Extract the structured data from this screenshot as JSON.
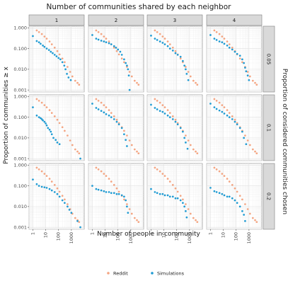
{
  "chart_data": {
    "type": "scatter",
    "title": "Number of communities shared by each neighbor",
    "xlabel": "Number of people in community",
    "ylabel": "Proportion of communities ≥ x",
    "right_label": "Proportion of considered communities chosen",
    "x_scale": "log",
    "y_scale": "log",
    "xlim": [
      0.5,
      10000
    ],
    "ylim": [
      0.0008,
      1.2
    ],
    "x_ticks": [
      "1",
      "10",
      "100",
      "1000"
    ],
    "y_ticks": [
      "1.000",
      "0.100",
      "0.010",
      "0.001"
    ],
    "grid": true,
    "legend_position": "bottom",
    "column_facets": [
      "1",
      "2",
      "3",
      "4"
    ],
    "row_facets": [
      "0.05",
      "0.1",
      "0.2"
    ],
    "colors": {
      "Reddit": "#f4a582",
      "Simulations": "#1f9bd3"
    },
    "series": [
      {
        "name": "Reddit",
        "x": [
          2,
          3,
          5,
          8,
          12,
          20,
          30,
          50,
          80,
          120,
          200,
          300,
          500,
          800,
          1200,
          2000,
          3000,
          4000
        ],
        "y": [
          0.75,
          0.62,
          0.5,
          0.38,
          0.3,
          0.22,
          0.16,
          0.11,
          0.075,
          0.052,
          0.033,
          0.022,
          0.013,
          0.0075,
          0.0045,
          0.0028,
          0.0022,
          0.0018
        ]
      }
    ],
    "panels": [
      {
        "col": "1",
        "row": "0.05",
        "series": [
          {
            "name": "Simulations",
            "x": [
              1,
              2,
              3,
              4,
              6,
              8,
              12,
              18,
              25,
              35,
              50,
              70,
              100,
              140,
              200,
              280,
              350,
              450,
              600,
              900
            ],
            "y": [
              0.4,
              0.23,
              0.2,
              0.17,
              0.14,
              0.12,
              0.1,
              0.085,
              0.07,
              0.06,
              0.05,
              0.042,
              0.035,
              0.03,
              0.022,
              0.015,
              0.01,
              0.006,
              0.004,
              0.003
            ]
          }
        ]
      },
      {
        "col": "2",
        "row": "0.05",
        "series": [
          {
            "name": "Simulations",
            "x": [
              1,
              2,
              3,
              5,
              8,
              12,
              20,
              30,
              50,
              70,
              100,
              150,
              200,
              300,
              400,
              500,
              600,
              700,
              800
            ],
            "y": [
              0.45,
              0.3,
              0.27,
              0.24,
              0.22,
              0.2,
              0.18,
              0.16,
              0.13,
              0.11,
              0.09,
              0.07,
              0.05,
              0.03,
              0.02,
              0.015,
              0.01,
              0.005,
              0.001
            ]
          }
        ]
      },
      {
        "col": "3",
        "row": "0.05",
        "series": [
          {
            "name": "Simulations",
            "x": [
              1,
              2,
              3,
              5,
              8,
              12,
              20,
              30,
              50,
              80,
              120,
              200,
              300,
              400,
              500,
              600,
              800
            ],
            "y": [
              0.42,
              0.3,
              0.26,
              0.22,
              0.19,
              0.16,
              0.13,
              0.1,
              0.08,
              0.06,
              0.05,
              0.04,
              0.025,
              0.015,
              0.01,
              0.006,
              0.003
            ]
          }
        ]
      },
      {
        "col": "4",
        "row": "0.05",
        "series": [
          {
            "name": "Simulations",
            "x": [
              1,
              2,
              3,
              5,
              8,
              12,
              20,
              30,
              50,
              80,
              120,
              200,
              300,
              400,
              500,
              600,
              800,
              1000
            ],
            "y": [
              0.45,
              0.3,
              0.26,
              0.22,
              0.2,
              0.17,
              0.14,
              0.11,
              0.09,
              0.07,
              0.055,
              0.045,
              0.03,
              0.02,
              0.012,
              0.008,
              0.005,
              0.003
            ]
          }
        ]
      },
      {
        "col": "1",
        "row": "0.1",
        "series": [
          {
            "name": "Simulations",
            "x": [
              1,
              2,
              3,
              4,
              5,
              6,
              8,
              10,
              12,
              15,
              20,
              25,
              30,
              40,
              60,
              80,
              120,
              5000
            ],
            "y": [
              0.3,
              0.12,
              0.1,
              0.09,
              0.08,
              0.07,
              0.06,
              0.05,
              0.04,
              0.03,
              0.025,
              0.02,
              0.015,
              0.01,
              0.008,
              0.006,
              0.005,
              0.001
            ]
          }
        ]
      },
      {
        "col": "2",
        "row": "0.1",
        "series": [
          {
            "name": "Simulations",
            "x": [
              1,
              2,
              3,
              5,
              8,
              12,
              20,
              30,
              50,
              80,
              120,
              200,
              300,
              400,
              500
            ],
            "y": [
              0.45,
              0.28,
              0.24,
              0.2,
              0.17,
              0.14,
              0.12,
              0.1,
              0.08,
              0.06,
              0.045,
              0.03,
              0.015,
              0.008,
              0.004
            ]
          }
        ]
      },
      {
        "col": "3",
        "row": "0.1",
        "series": [
          {
            "name": "Simulations",
            "x": [
              1,
              2,
              3,
              5,
              8,
              12,
              20,
              30,
              50,
              80,
              120,
              200,
              300,
              400,
              500,
              700
            ],
            "y": [
              0.4,
              0.28,
              0.24,
              0.2,
              0.18,
              0.15,
              0.12,
              0.1,
              0.08,
              0.06,
              0.045,
              0.03,
              0.02,
              0.01,
              0.006,
              0.003
            ]
          }
        ]
      },
      {
        "col": "4",
        "row": "0.1",
        "series": [
          {
            "name": "Simulations",
            "x": [
              1,
              2,
              3,
              5,
              8,
              12,
              20,
              30,
              50,
              80,
              120,
              200,
              300,
              400,
              600
            ],
            "y": [
              0.45,
              0.3,
              0.25,
              0.21,
              0.18,
              0.15,
              0.12,
              0.1,
              0.08,
              0.06,
              0.045,
              0.03,
              0.02,
              0.01,
              0.005
            ]
          }
        ]
      },
      {
        "col": "1",
        "row": "0.2",
        "series": [
          {
            "name": "Simulations",
            "x": [
              1,
              2,
              3,
              5,
              8,
              12,
              20,
              30,
              50,
              80,
              120,
              200,
              300,
              500,
              700,
              1000,
              3000,
              5000
            ],
            "y": [
              0.2,
              0.12,
              0.1,
              0.09,
              0.085,
              0.08,
              0.07,
              0.06,
              0.05,
              0.04,
              0.03,
              0.02,
              0.015,
              0.01,
              0.007,
              0.005,
              0.002,
              0.001
            ]
          }
        ]
      },
      {
        "col": "2",
        "row": "0.2",
        "series": [
          {
            "name": "Simulations",
            "x": [
              1,
              2,
              3,
              5,
              8,
              12,
              20,
              30,
              50,
              80,
              120,
              200,
              300,
              400,
              500,
              600
            ],
            "y": [
              0.1,
              0.07,
              0.065,
              0.06,
              0.055,
              0.05,
              0.05,
              0.045,
              0.045,
              0.04,
              0.04,
              0.035,
              0.03,
              0.02,
              0.01,
              0.005
            ]
          }
        ]
      },
      {
        "col": "3",
        "row": "0.2",
        "series": [
          {
            "name": "Simulations",
            "x": [
              1,
              2,
              3,
              5,
              8,
              12,
              20,
              30,
              50,
              80,
              120,
              200,
              300,
              400,
              500,
              600
            ],
            "y": [
              0.07,
              0.05,
              0.045,
              0.04,
              0.04,
              0.035,
              0.035,
              0.03,
              0.03,
              0.025,
              0.025,
              0.02,
              0.015,
              0.01,
              0.006,
              0.003
            ]
          }
        ]
      },
      {
        "col": "4",
        "row": "0.2",
        "series": [
          {
            "name": "Simulations",
            "x": [
              1,
              2,
              3,
              5,
              8,
              12,
              20,
              30,
              50,
              80,
              120,
              200,
              300,
              400,
              500
            ],
            "y": [
              0.08,
              0.055,
              0.05,
              0.045,
              0.04,
              0.035,
              0.03,
              0.03,
              0.025,
              0.02,
              0.015,
              0.01,
              0.006,
              0.004,
              0.002
            ]
          }
        ]
      }
    ]
  }
}
